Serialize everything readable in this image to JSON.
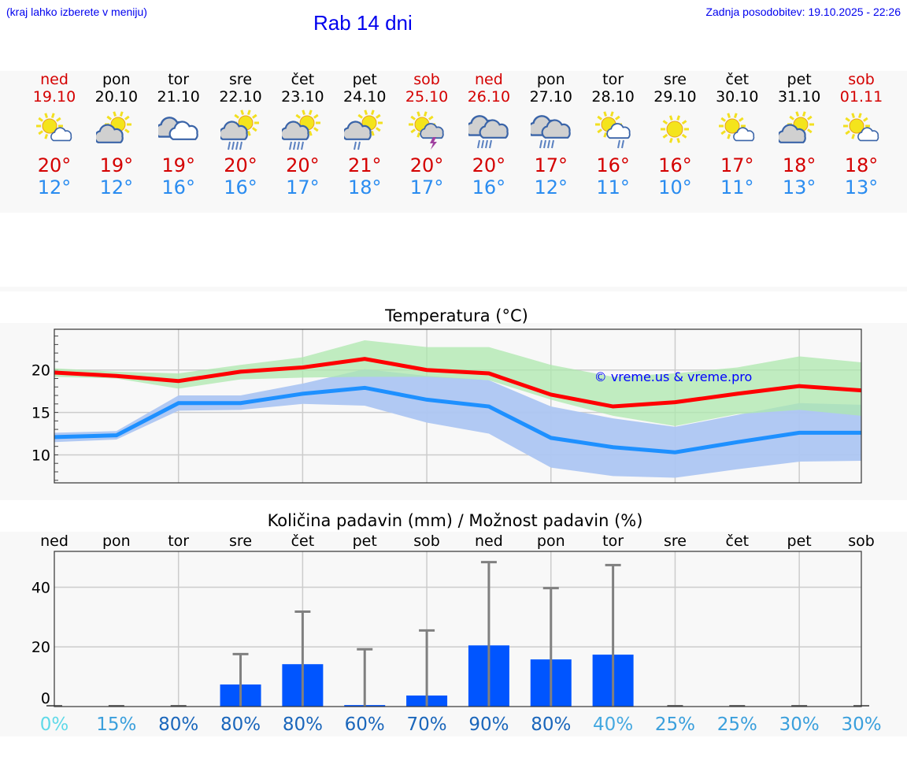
{
  "header": {
    "hint": "(kraj lahko izberete v meniju)",
    "title": "Rab 14 dni",
    "updated": "Zadnja posodobitev: 19.10.2025 - 22:26"
  },
  "days": [
    {
      "name": "ned",
      "date": "19.10",
      "weekend": true,
      "icon": "partly-cloudy",
      "max": "20°",
      "min": "12°"
    },
    {
      "name": "pon",
      "date": "20.10",
      "weekend": false,
      "icon": "mostly-cloudy",
      "max": "19°",
      "min": "12°"
    },
    {
      "name": "tor",
      "date": "21.10",
      "weekend": false,
      "icon": "overcast",
      "max": "19°",
      "min": "16°"
    },
    {
      "name": "sre",
      "date": "22.10",
      "weekend": false,
      "icon": "sun-heavy-showers",
      "max": "20°",
      "min": "16°"
    },
    {
      "name": "čet",
      "date": "23.10",
      "weekend": false,
      "icon": "sun-heavy-showers",
      "max": "20°",
      "min": "17°"
    },
    {
      "name": "pet",
      "date": "24.10",
      "weekend": false,
      "icon": "sun-light-showers",
      "max": "21°",
      "min": "18°"
    },
    {
      "name": "sob",
      "date": "25.10",
      "weekend": true,
      "icon": "sun-thunderstorm",
      "max": "20°",
      "min": "17°"
    },
    {
      "name": "ned",
      "date": "26.10",
      "weekend": true,
      "icon": "overcast-rain",
      "max": "20°",
      "min": "16°"
    },
    {
      "name": "pon",
      "date": "27.10",
      "weekend": false,
      "icon": "overcast-rain",
      "max": "17°",
      "min": "12°"
    },
    {
      "name": "tor",
      "date": "28.10",
      "weekend": false,
      "icon": "sun-light-showers-small",
      "max": "16°",
      "min": "11°"
    },
    {
      "name": "sre",
      "date": "29.10",
      "weekend": false,
      "icon": "sunny",
      "max": "16°",
      "min": "10°"
    },
    {
      "name": "čet",
      "date": "30.10",
      "weekend": false,
      "icon": "partly-cloudy",
      "max": "17°",
      "min": "11°"
    },
    {
      "name": "pet",
      "date": "31.10",
      "weekend": false,
      "icon": "mostly-cloudy",
      "max": "18°",
      "min": "13°"
    },
    {
      "name": "sob",
      "date": "01.11",
      "weekend": true,
      "icon": "partly-cloudy",
      "max": "18°",
      "min": "13°"
    }
  ],
  "colors": {
    "max": "#ff0000",
    "min": "#1e90ff",
    "maxBand": "#aee8ae",
    "minBand": "#adc6f2",
    "bar": "#0055ff",
    "err": "#808080"
  },
  "chart_data": [
    {
      "type": "line",
      "title": "Temperatura (°C)",
      "ylim": [
        6.7,
        24.8
      ],
      "yticks": [
        10,
        15,
        20
      ],
      "watermark": "© vreme.us & vreme.pro",
      "series": [
        {
          "name": "max",
          "values": [
            19.7,
            19.3,
            18.7,
            19.8,
            20.3,
            21.3,
            20.0,
            19.6,
            17.1,
            15.7,
            16.2,
            17.2,
            18.1,
            17.6
          ],
          "band_low": [
            19.2,
            19.0,
            17.8,
            18.9,
            19.1,
            19.2,
            19.2,
            18.8,
            16.5,
            14.6,
            13.4,
            14.8,
            15.3,
            14.6
          ],
          "band_high": [
            20.2,
            19.8,
            19.6,
            20.6,
            21.5,
            23.5,
            22.7,
            22.7,
            20.6,
            19.2,
            19.6,
            20.3,
            21.6,
            20.9
          ]
        },
        {
          "name": "min",
          "values": [
            12.1,
            12.3,
            16.1,
            16.1,
            17.2,
            17.9,
            16.5,
            15.7,
            12.0,
            10.9,
            10.3,
            11.5,
            12.6,
            12.6
          ],
          "band_low": [
            11.5,
            11.8,
            15.2,
            15.3,
            16.0,
            15.8,
            13.8,
            12.5,
            8.5,
            7.5,
            7.3,
            8.3,
            9.2,
            9.3
          ],
          "band_high": [
            12.6,
            12.8,
            17.0,
            17.0,
            18.4,
            20.1,
            19.3,
            18.8,
            15.7,
            14.3,
            13.3,
            14.7,
            16.1,
            15.9
          ]
        }
      ]
    },
    {
      "type": "bar",
      "title": "Količina padavin (mm) / Možnost padavin (%)",
      "ylim": [
        0,
        52
      ],
      "yticks": [
        0,
        20,
        40
      ],
      "categories": [
        "ned",
        "pon",
        "tor",
        "sre",
        "čet",
        "pet",
        "sob",
        "ned",
        "pon",
        "tor",
        "sre",
        "čet",
        "pet",
        "sob"
      ],
      "values": [
        0,
        0,
        0,
        7.4,
        14.2,
        0.5,
        3.7,
        20.5,
        15.8,
        17.4,
        0,
        0,
        0,
        0
      ],
      "error_high": [
        0,
        0,
        0,
        17.6,
        31.8,
        19.2,
        25.5,
        48.4,
        39.7,
        47.4,
        0,
        0,
        0,
        0
      ],
      "probability": [
        "0%",
        "15%",
        "80%",
        "80%",
        "80%",
        "60%",
        "70%",
        "90%",
        "80%",
        "40%",
        "25%",
        "25%",
        "30%",
        "30%"
      ],
      "probability_colors": [
        "#5fd9e8",
        "#3a9fdc",
        "#1a66bb",
        "#1a66bb",
        "#1a66bb",
        "#1a66bb",
        "#1a66bb",
        "#1a66bb",
        "#1a66bb",
        "#44a8e0",
        "#3a9fdc",
        "#3a9fdc",
        "#3a9fdc",
        "#3a9fdc"
      ]
    }
  ]
}
